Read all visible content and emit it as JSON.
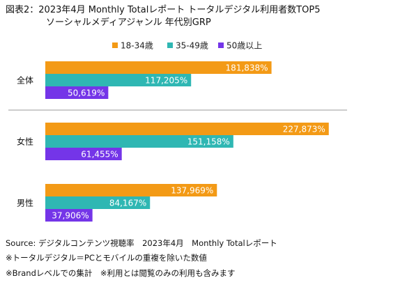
{
  "title": {
    "line1": "図表2：2023年4月 Monthly Totalレポート トータルデジタル利用者数TOP5",
    "line2": "ソーシャルメディアジャンル 年代別GRP"
  },
  "colors": {
    "series_1": "#f39a16",
    "series_2": "#2fb7b3",
    "series_3": "#7435e8",
    "separator": "#bbbbbb"
  },
  "chart_data": {
    "type": "bar",
    "orientation": "horizontal",
    "categories": [
      "全体",
      "女性",
      "男性"
    ],
    "series": [
      {
        "name": "18-34歳",
        "values": [
          181838,
          227873,
          137969
        ],
        "labels": [
          "181,838%",
          "227,873%",
          "137,969%"
        ]
      },
      {
        "name": "35-49歳",
        "values": [
          117205,
          151158,
          84167
        ],
        "labels": [
          "117,205%",
          "151,158%",
          "84,167%"
        ]
      },
      {
        "name": "50歳以上",
        "values": [
          50619,
          61455,
          37906
        ],
        "labels": [
          "50,619%",
          "61,455%",
          "37,906%"
        ]
      }
    ],
    "legend_position": "top",
    "grid": false
  },
  "footer": {
    "source": "Source: デジタルコンテンツ視聴率　2023年4月　Monthly Totalレポート",
    "note1": "※トータルデジタル＝PCとモバイルの重複を除いた数値",
    "note2": "※Brandレベルでの集計　※利用とは閲覧のみの利用も含みます"
  }
}
